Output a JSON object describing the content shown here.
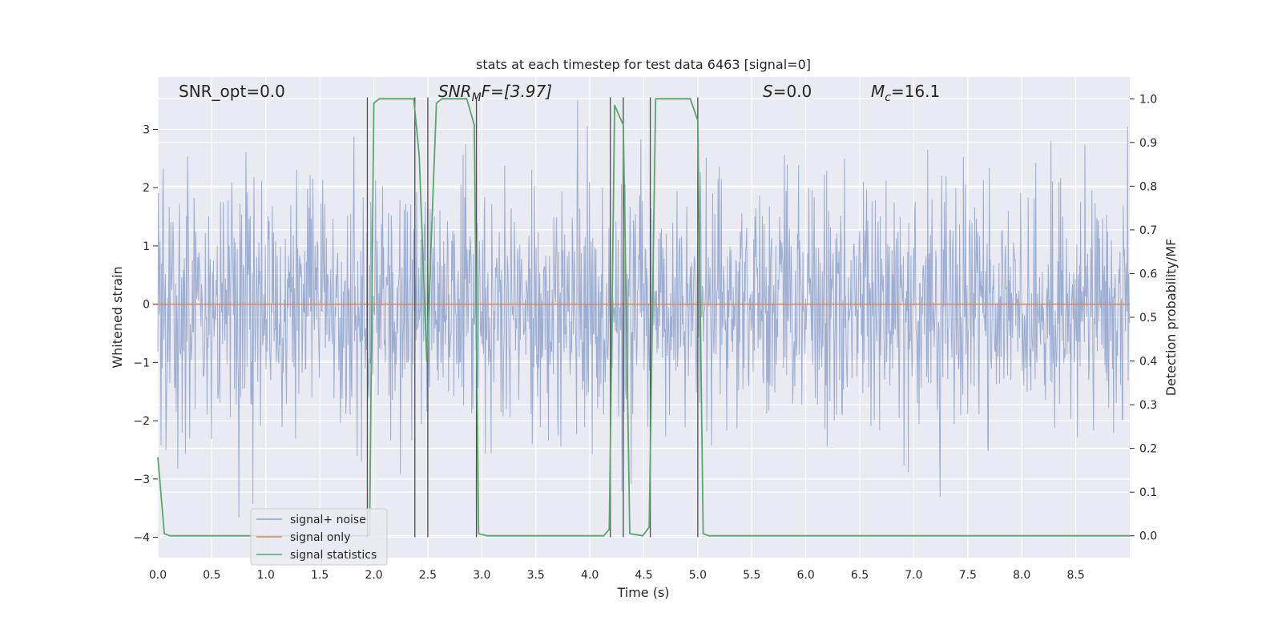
{
  "chart_data": {
    "type": "line",
    "title": "stats at each timestep for test data 6463 [signal=0]",
    "xlabel": "Time (s)",
    "ylabel": "Whitened strain",
    "y2label": "Detection probability/MF",
    "xlim": [
      0,
      9.0
    ],
    "ylim": [
      -4.35,
      3.9
    ],
    "y2lim": [
      -0.05,
      1.05
    ],
    "grid": true,
    "xticks": [
      "0.0",
      "0.5",
      "1.0",
      "1.5",
      "2.0",
      "2.5",
      "3.0",
      "3.5",
      "4.0",
      "4.5",
      "5.0",
      "5.5",
      "6.0",
      "6.5",
      "7.0",
      "7.5",
      "8.0",
      "8.5"
    ],
    "yticks": [
      "3",
      "2",
      "1",
      "0",
      "−1",
      "−2",
      "−3",
      "−4"
    ],
    "y2ticks": [
      "1.0",
      "0.9",
      "0.8",
      "0.7",
      "0.6",
      "0.5",
      "0.4",
      "0.3",
      "0.2",
      "0.1",
      "0.0"
    ],
    "annotations": {
      "snr_opt": "SNR_opt=0.0",
      "snr_mf_main": "SNR",
      "snr_mf_sub": "M",
      "snr_mf_rest": "F=[3.97]",
      "s_main": "S",
      "s_rest": "=0.0",
      "mc_main": "M",
      "mc_sub": "c",
      "mc_rest": "=16.1"
    },
    "legend": {
      "placement": "lower-left",
      "entries": [
        {
          "label": "signal+ noise",
          "color": "#8fa3cc"
        },
        {
          "label": "signal only",
          "color": "#dd8452"
        },
        {
          "label": "signal statistics",
          "color": "#55a868"
        }
      ]
    },
    "noise_series": {
      "name": "signal+ noise",
      "color": "#8fa3cc",
      "samples": 1800,
      "seed": 6463
    },
    "signal_only": {
      "name": "signal only",
      "color": "#dd8452",
      "x": [
        0,
        9.0
      ],
      "y": [
        0,
        0
      ]
    },
    "statistics_series": {
      "name": "signal statistics",
      "color": "#55a868",
      "x": [
        0.0,
        0.06,
        0.11,
        1.93,
        1.96,
        2.0,
        2.05,
        2.37,
        2.42,
        2.49,
        2.58,
        2.63,
        2.86,
        2.93,
        2.97,
        3.05,
        4.13,
        4.18,
        4.23,
        4.31,
        4.37,
        4.49,
        4.55,
        4.61,
        4.93,
        5.0,
        5.05,
        5.1,
        9.0
      ],
      "y": [
        0.18,
        0.005,
        0.0,
        0.0,
        0.0,
        0.99,
        1.0,
        1.0,
        0.87,
        0.4,
        0.99,
        1.0,
        1.0,
        0.94,
        0.005,
        0.0,
        0.0,
        0.015,
        0.985,
        0.94,
        0.005,
        0.0,
        0.02,
        1.0,
        1.0,
        0.95,
        0.005,
        0.0,
        0.0
      ]
    },
    "vlines": {
      "color": "#4d4d4d",
      "x": [
        1.94,
        2.38,
        2.5,
        2.95,
        4.19,
        4.31,
        4.56,
        5.0
      ],
      "ylim": [
        -4.0,
        3.55
      ]
    }
  }
}
